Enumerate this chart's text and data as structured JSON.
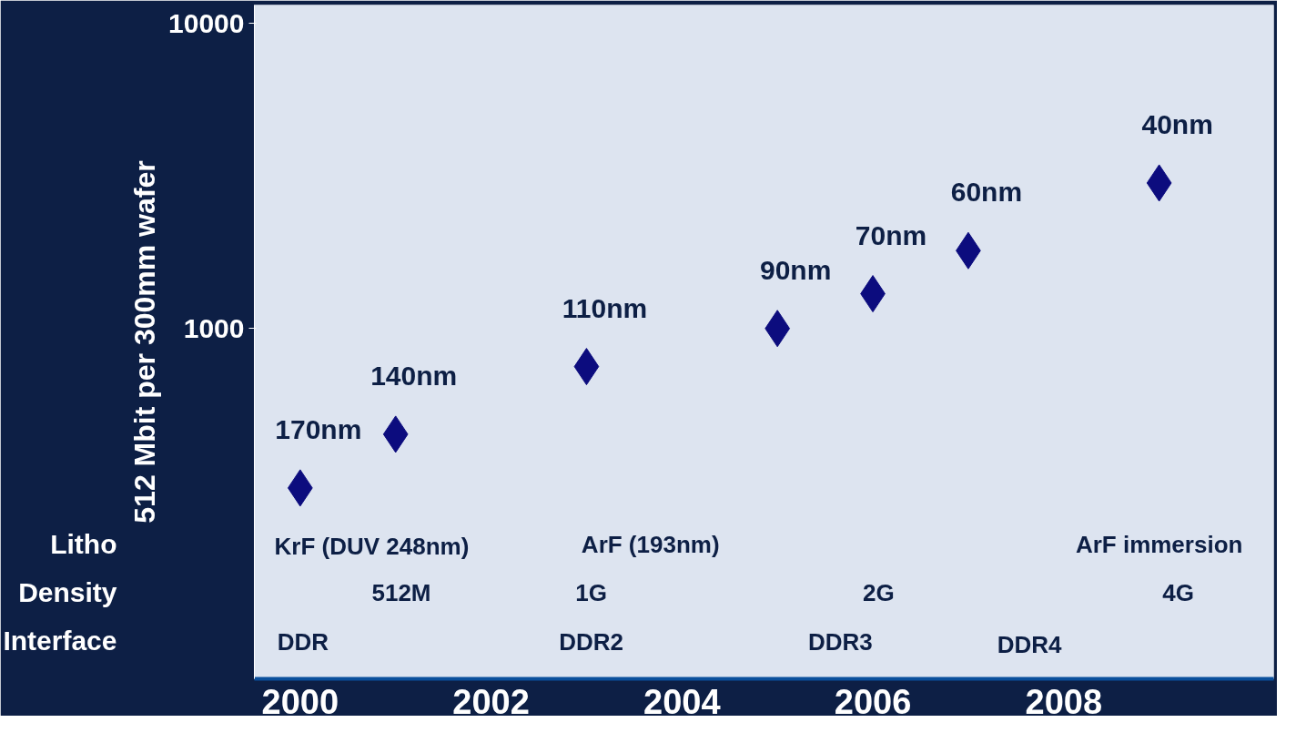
{
  "chart_data": {
    "type": "scatter",
    "ylabel": "512 Mbit per 300mm wafer",
    "log": "y",
    "marker": "diamond",
    "grid": false,
    "x": [
      2000,
      2001,
      2003,
      2005,
      2006,
      2007,
      2009
    ],
    "series": [
      {
        "color": "#0c0c7e",
        "values": [
          300,
          450,
          750,
          1000,
          1300,
          1800,
          3000
        ]
      }
    ],
    "xlim": [
      1999.52,
      2010.2
    ],
    "xticks": [
      2000,
      2002,
      2004,
      2006,
      2008
    ],
    "ylim": [
      71,
      11500
    ],
    "yticks": [
      1000,
      10000
    ],
    "annotations": [
      {
        "text": "170nm",
        "x": 2000,
        "y": 300
      },
      {
        "text": "140nm",
        "x": 2001,
        "y": 450
      },
      {
        "text": "110nm",
        "x": 2003,
        "y": 750
      },
      {
        "text": "90nm",
        "x": 2005,
        "y": 1000
      },
      {
        "text": "70nm",
        "x": 2006,
        "y": 1300
      },
      {
        "text": "60nm",
        "x": 2007,
        "y": 1800
      },
      {
        "text": "40nm",
        "x": 2009,
        "y": 3000
      },
      "Litho",
      "KrF (DUV 248nm)",
      "ArF (193nm)",
      "ArF immersion",
      "Density",
      "512M",
      "1G",
      "2G",
      "4G",
      "Interface",
      "DDR",
      "DDR2",
      "DDR3",
      "DDR4"
    ]
  }
}
